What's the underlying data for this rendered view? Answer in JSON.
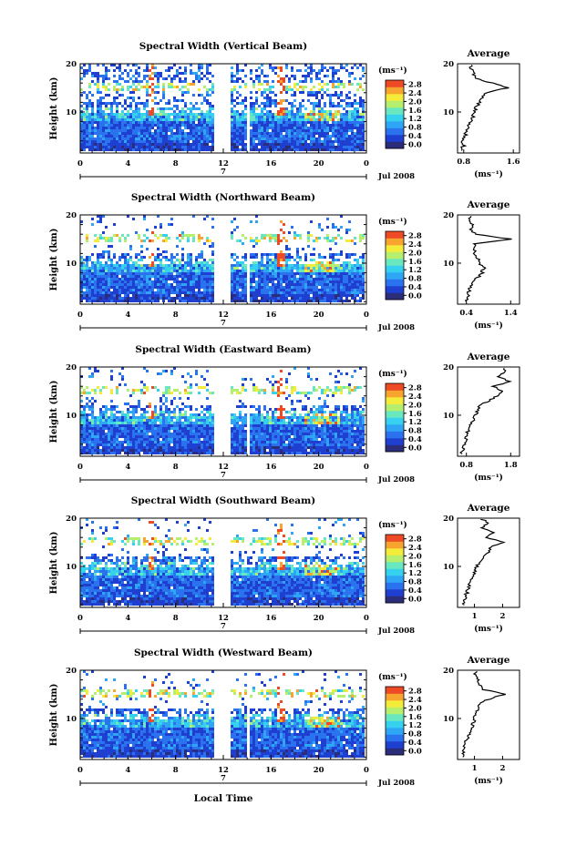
{
  "figure": {
    "xlabel": "Local Time",
    "date_label": "Jul 2008",
    "day_label": "7",
    "unit_label": "(ms⁻¹)",
    "avg_title": "Average"
  },
  "colorbar": {
    "ticks": [
      "0.0",
      "0.4",
      "0.8",
      "1.2",
      "1.6",
      "2.0",
      "2.4",
      "2.8"
    ],
    "colors": [
      "#2b2d78",
      "#1f3fd0",
      "#2a72ee",
      "#2fa6f5",
      "#35d1ee",
      "#69e8c0",
      "#b6ef6e",
      "#f4ec3a",
      "#f7a52e",
      "#ef4a26"
    ]
  },
  "chart_data": [
    {
      "type": "heatmap",
      "title": "Spectral Width (Vertical Beam)",
      "xlabel": "Local Time",
      "ylabel": "Height (km)",
      "x_ticks": [
        "0",
        "4",
        "8",
        "12",
        "16",
        "20",
        "0"
      ],
      "y_ticks": [
        "20",
        "10"
      ],
      "xlim": [
        0,
        24
      ],
      "ylim": [
        1.5,
        20
      ],
      "gaps": [
        [
          11.2,
          12.7
        ],
        [
          14.0,
          14.3
        ]
      ],
      "zrange": [
        0,
        3.0
      ],
      "profile": {
        "title": "Average",
        "xlabel": "(ms⁻¹)",
        "x_ticks": [
          "0.8",
          "1.6"
        ],
        "xlim": [
          0.7,
          1.7
        ],
        "y_ticks": [
          "20",
          "10"
        ],
        "height": [
          2,
          3,
          4,
          5,
          6,
          7,
          8,
          9,
          10,
          11,
          12,
          13,
          14,
          15,
          16,
          17,
          18,
          19,
          20
        ],
        "width": [
          0.75,
          0.8,
          0.77,
          0.82,
          0.85,
          0.88,
          0.9,
          0.95,
          0.98,
          1.0,
          1.05,
          1.1,
          1.15,
          1.5,
          1.25,
          1.0,
          0.95,
          0.92,
          0.9
        ]
      }
    },
    {
      "type": "heatmap",
      "title": "Spectral Width (Northward Beam)",
      "xlabel": "Local Time",
      "ylabel": "Height (km)",
      "x_ticks": [
        "0",
        "4",
        "8",
        "12",
        "16",
        "20",
        "0"
      ],
      "y_ticks": [
        "20",
        "10"
      ],
      "xlim": [
        0,
        24
      ],
      "ylim": [
        1.5,
        20
      ],
      "gaps": [
        [
          11.2,
          12.7
        ],
        [
          14.0,
          14.3
        ]
      ],
      "zrange": [
        0,
        3.0
      ],
      "profile": {
        "title": "Average",
        "xlabel": "(ms⁻¹)",
        "x_ticks": [
          "0.4",
          "1.4"
        ],
        "xlim": [
          0.2,
          1.6
        ],
        "y_ticks": [
          "20",
          "10"
        ],
        "height": [
          2,
          3,
          4,
          5,
          6,
          7,
          8,
          9,
          10,
          11,
          12,
          13,
          14,
          15,
          16,
          17,
          18,
          19,
          20
        ],
        "width": [
          0.4,
          0.42,
          0.45,
          0.5,
          0.55,
          0.65,
          0.75,
          0.8,
          0.7,
          0.65,
          0.6,
          0.55,
          0.6,
          1.4,
          0.6,
          0.5,
          0.55,
          0.45,
          0.5
        ]
      }
    },
    {
      "type": "heatmap",
      "title": "Spectral Width (Eastward Beam)",
      "xlabel": "Local Time",
      "ylabel": "Height (km)",
      "x_ticks": [
        "0",
        "4",
        "8",
        "12",
        "16",
        "20",
        "0"
      ],
      "y_ticks": [
        "20",
        "10"
      ],
      "xlim": [
        0,
        24
      ],
      "ylim": [
        1.5,
        20
      ],
      "gaps": [
        [
          11.2,
          12.7
        ],
        [
          14.0,
          14.3
        ]
      ],
      "zrange": [
        0,
        3.0
      ],
      "profile": {
        "title": "Average",
        "xlabel": "(ms⁻¹)",
        "x_ticks": [
          "0.8",
          "1.8"
        ],
        "xlim": [
          0.6,
          2.0
        ],
        "y_ticks": [
          "20",
          "10"
        ],
        "height": [
          2,
          3,
          4,
          5,
          6,
          7,
          8,
          9,
          10,
          11,
          12,
          13,
          14,
          15,
          16,
          17,
          18,
          19,
          20
        ],
        "width": [
          0.7,
          0.72,
          0.75,
          0.78,
          0.8,
          0.85,
          0.9,
          0.95,
          1.0,
          1.05,
          1.1,
          1.3,
          1.5,
          1.6,
          1.4,
          1.8,
          1.5,
          1.7,
          1.6
        ]
      }
    },
    {
      "type": "heatmap",
      "title": "Spectral Width (Southward Beam)",
      "xlabel": "Local Time",
      "ylabel": "Height (km)",
      "x_ticks": [
        "0",
        "4",
        "8",
        "12",
        "16",
        "20",
        "0"
      ],
      "y_ticks": [
        "20",
        "10"
      ],
      "xlim": [
        0,
        24
      ],
      "ylim": [
        1.5,
        20
      ],
      "gaps": [
        [
          11.2,
          12.7
        ]
      ],
      "zrange": [
        0,
        3.0
      ],
      "profile": {
        "title": "Average",
        "xlabel": "(ms⁻¹)",
        "x_ticks": [
          "1",
          "2"
        ],
        "xlim": [
          0.4,
          2.6
        ],
        "y_ticks": [
          "20",
          "10"
        ],
        "height": [
          2,
          3,
          4,
          5,
          6,
          7,
          8,
          9,
          10,
          11,
          12,
          13,
          14,
          15,
          16,
          17,
          18,
          19,
          20
        ],
        "width": [
          0.6,
          0.65,
          0.7,
          0.75,
          0.8,
          0.85,
          0.95,
          1.0,
          1.1,
          1.2,
          1.3,
          1.5,
          1.6,
          2.0,
          1.4,
          1.7,
          1.3,
          1.5,
          1.2
        ]
      }
    },
    {
      "type": "heatmap",
      "title": "Spectral Width (Westward Beam)",
      "xlabel": "Local Time",
      "ylabel": "Height (km)",
      "x_ticks": [
        "0",
        "4",
        "8",
        "12",
        "16",
        "20",
        "0"
      ],
      "y_ticks": [
        "20",
        "10"
      ],
      "xlim": [
        0,
        24
      ],
      "ylim": [
        1.5,
        20
      ],
      "gaps": [
        [
          11.2,
          12.7
        ],
        [
          14.0,
          14.3
        ]
      ],
      "zrange": [
        0,
        3.0
      ],
      "profile": {
        "title": "Average",
        "xlabel": "(ms⁻¹)",
        "x_ticks": [
          "1",
          "2"
        ],
        "xlim": [
          0.4,
          2.6
        ],
        "y_ticks": [
          "20",
          "10"
        ],
        "height": [
          2,
          3,
          4,
          5,
          6,
          7,
          8,
          9,
          10,
          11,
          12,
          13,
          14,
          15,
          16,
          17,
          18,
          19,
          20
        ],
        "width": [
          0.6,
          0.62,
          0.65,
          0.7,
          0.75,
          0.8,
          0.9,
          0.95,
          1.0,
          1.05,
          1.1,
          1.2,
          1.5,
          2.1,
          1.3,
          1.2,
          1.1,
          1.0,
          1.05
        ]
      }
    }
  ]
}
